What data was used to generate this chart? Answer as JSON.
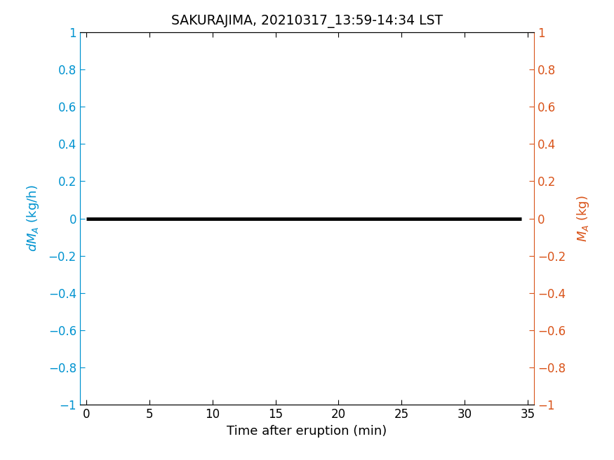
{
  "title": "SAKURAJIMA, 20210317_13:59-14:34 LST",
  "title_fontsize": 13.5,
  "xlabel": "Time after eruption (min)",
  "left_color": "#0093D0",
  "right_color": "#D95319",
  "line_color": "#000000",
  "line_width": 3.5,
  "xlim": [
    -0.5,
    35.5
  ],
  "ylim": [
    -1,
    1
  ],
  "xticks": [
    0,
    5,
    10,
    15,
    20,
    25,
    30,
    35
  ],
  "yticks": [
    -1.0,
    -0.8,
    -0.6,
    -0.4,
    -0.2,
    0.0,
    0.2,
    0.4,
    0.6,
    0.8,
    1.0
  ],
  "x_data": [
    0,
    34.5
  ],
  "y_data": [
    0,
    0
  ],
  "background_color": "#ffffff",
  "xlabel_fontsize": 13,
  "ylabel_fontsize": 13,
  "tick_fontsize": 12
}
